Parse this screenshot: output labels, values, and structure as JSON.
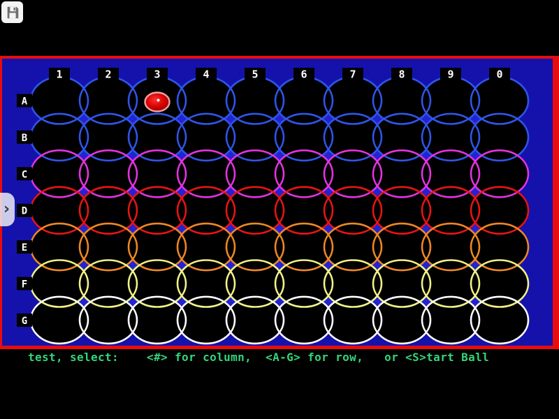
{
  "app": {
    "toggle_glyph": "›",
    "icons": {
      "save_button": "floppy-disk",
      "panel_toggle": "chevron-right"
    }
  },
  "board": {
    "columns": [
      "1",
      "2",
      "3",
      "4",
      "5",
      "6",
      "7",
      "8",
      "9",
      "0"
    ],
    "rows": [
      {
        "label": "A",
        "color": "#2f55ea"
      },
      {
        "label": "B",
        "color": "#2f55ea"
      },
      {
        "label": "C",
        "color": "#e433e0"
      },
      {
        "label": "D",
        "color": "#e81414"
      },
      {
        "label": "E",
        "color": "#ee8822"
      },
      {
        "label": "F",
        "color": "#f2f288"
      },
      {
        "label": "G",
        "color": "#ffffff"
      }
    ],
    "ball": {
      "row": "A",
      "column": "3",
      "fill": "#d40000",
      "outline": "#eda4a4",
      "highlight": "#ffffff"
    },
    "background": "#1512ac",
    "border_color": "#e80c0c",
    "cell_fill": "#000000",
    "diamond_color": "#2323d2",
    "label_bg": "#000000",
    "label_fg": "#ffffff"
  },
  "status_bar": {
    "text": "test, select:    <#> for column,  <A-G> for row,   or <S>tart Ball",
    "color": "#34d47a"
  }
}
